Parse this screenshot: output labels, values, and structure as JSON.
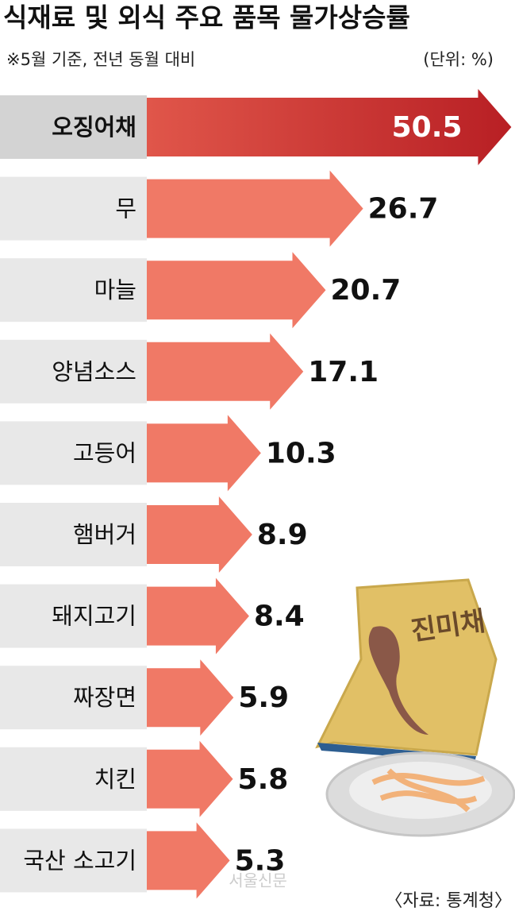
{
  "chart_data": {
    "type": "bar",
    "orientation": "horizontal",
    "title": "식재료 및 외식 주요 품목 물가상승률",
    "subtitle": "※5월 기준, 전년 동월 대비",
    "unit": "(단위: %)",
    "source": "〈자료: 통계청〉",
    "watermark": "서울신문",
    "illustration_label": "진미채",
    "categories": [
      "오징어채",
      "무",
      "마늘",
      "양념소스",
      "고등어",
      "햄버거",
      "돼지고기",
      "짜장면",
      "치킨",
      "국산 소고기"
    ],
    "values": [
      50.5,
      26.7,
      20.7,
      17.1,
      10.3,
      8.9,
      8.4,
      5.9,
      5.8,
      5.3
    ],
    "colors": [
      "#c42a2a",
      "#f07966",
      "#f07966",
      "#f07966",
      "#f07966",
      "#f07966",
      "#f07966",
      "#f07966",
      "#f07966",
      "#f07966"
    ]
  }
}
